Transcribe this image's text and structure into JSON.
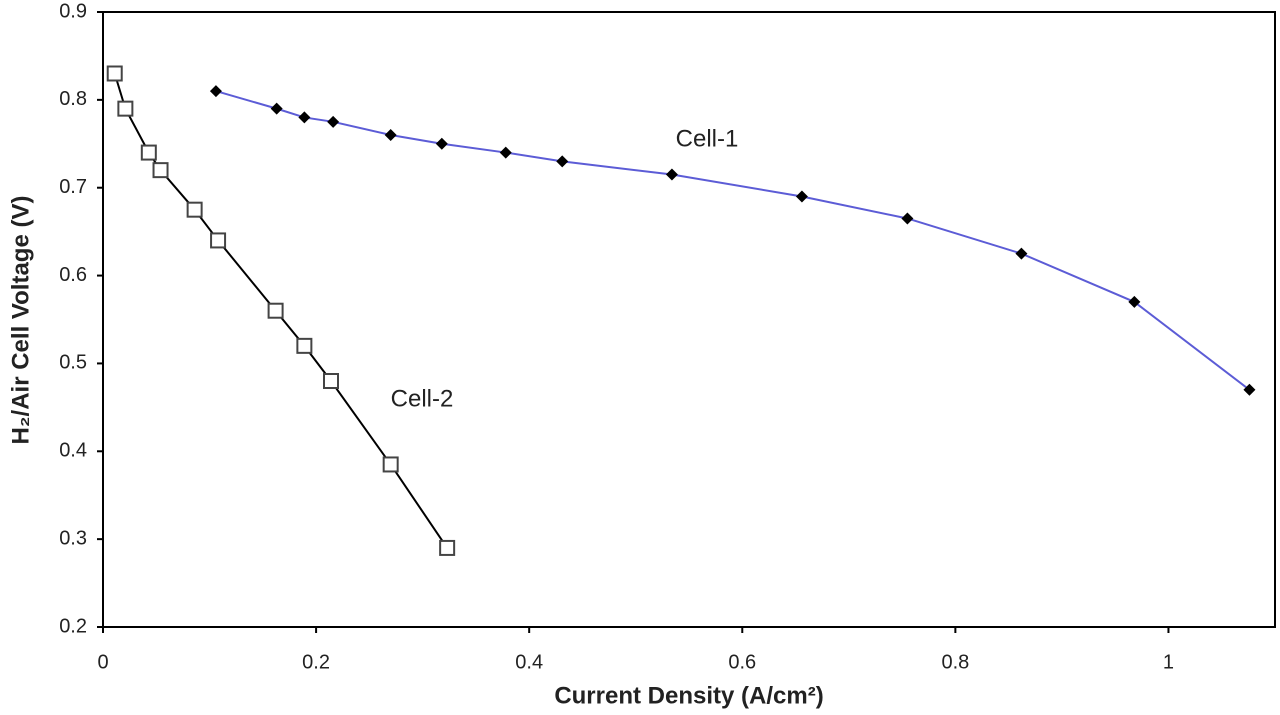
{
  "chart_data": {
    "type": "line",
    "xlabel": "Current Density (A/cm²)",
    "ylabel": "H₂/Air Cell Voltage (V)",
    "xlim": [
      0,
      1.1
    ],
    "ylim": [
      0.2,
      0.9
    ],
    "xticks": [
      0,
      0.2,
      0.4,
      0.6,
      0.8,
      1
    ],
    "yticks": [
      0.2,
      0.3,
      0.4,
      0.5,
      0.6,
      0.7,
      0.8,
      0.9
    ],
    "grid": false,
    "series": [
      {
        "name": "Cell-1",
        "color": "#5c5cd6",
        "marker": "diamond",
        "marker_color": "#000000",
        "x": [
          0.106,
          0.163,
          0.189,
          0.216,
          0.27,
          0.318,
          0.378,
          0.431,
          0.534,
          0.656,
          0.755,
          0.862,
          0.968,
          1.076
        ],
        "values": [
          0.81,
          0.79,
          0.78,
          0.775,
          0.76,
          0.75,
          0.74,
          0.73,
          0.715,
          0.69,
          0.665,
          0.625,
          0.57,
          0.47
        ]
      },
      {
        "name": "Cell-2",
        "color": "#000000",
        "marker": "square",
        "marker_color": "#444444",
        "x": [
          0.011,
          0.021,
          0.043,
          0.054,
          0.086,
          0.108,
          0.162,
          0.189,
          0.214,
          0.27,
          0.323
        ],
        "values": [
          0.83,
          0.79,
          0.74,
          0.72,
          0.675,
          0.64,
          0.56,
          0.52,
          0.48,
          0.385,
          0.29
        ]
      }
    ]
  }
}
